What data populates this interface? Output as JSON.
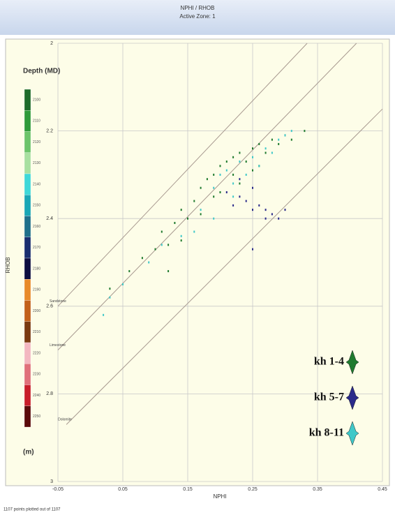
{
  "chart_data": {
    "type": "scatter",
    "title": "NPHI / RHOB",
    "subtitle": "Active Zone: 1",
    "x_label": "NPHI",
    "y_label": "RHOB",
    "footer": "1107 points plotted out of 1107",
    "xlim": [
      -0.05,
      0.45
    ],
    "ylim": [
      3,
      2
    ],
    "xticks": [
      -0.05,
      0.05,
      0.15,
      0.25,
      0.35,
      0.45
    ],
    "yticks": [
      2,
      2.2,
      2.4,
      2.6,
      2.8,
      3
    ],
    "grid": true,
    "lithology_lines": [
      {
        "name": "Sandstone",
        "x": [
          -0.05,
          0.334
        ],
        "y": [
          2.6,
          2.0
        ]
      },
      {
        "name": "Limestone",
        "x": [
          -0.05,
          0.41
        ],
        "y": [
          2.7,
          2.0
        ]
      },
      {
        "name": "Dolomite",
        "x": [
          -0.037,
          0.45
        ],
        "y": [
          2.87,
          2.15
        ]
      }
    ],
    "colorbar": {
      "title": "Depth (MD)",
      "unit": "(m)",
      "labels": [
        "2100",
        "2110",
        "2120",
        "2130",
        "2140",
        "2150",
        "2160",
        "2170",
        "2180",
        "2190",
        "2200",
        "2210",
        "2220",
        "2230",
        "2240",
        "2250"
      ],
      "colors": [
        "#1e6b2a",
        "#2f9a3a",
        "#6cc46a",
        "#a8e0a0",
        "#3fd8d8",
        "#1aa7b5",
        "#20708a",
        "#1a2e6e",
        "#0d0d40",
        "#e88a2a",
        "#c2601a",
        "#7a3a10",
        "#f3b7c0",
        "#e0707a",
        "#c81e2a",
        "#5a0a0a"
      ]
    },
    "series": [
      {
        "name": "kh 1-4",
        "color": "#1f7a2e",
        "x": [
          0.03,
          0.06,
          0.08,
          0.1,
          0.11,
          0.12,
          0.13,
          0.14,
          0.15,
          0.16,
          0.17,
          0.18,
          0.19,
          0.2,
          0.2,
          0.21,
          0.22,
          0.22,
          0.23,
          0.24,
          0.25,
          0.25,
          0.26,
          0.27,
          0.28,
          0.29,
          0.3,
          0.31,
          0.33,
          0.12,
          0.14,
          0.17,
          0.19,
          0.23,
          0.26
        ],
        "values": [
          2.56,
          2.52,
          2.49,
          2.47,
          2.43,
          2.46,
          2.41,
          2.38,
          2.4,
          2.36,
          2.33,
          2.31,
          2.3,
          2.28,
          2.34,
          2.27,
          2.26,
          2.3,
          2.25,
          2.27,
          2.24,
          2.29,
          2.23,
          2.25,
          2.22,
          2.23,
          2.21,
          2.22,
          2.2,
          2.52,
          2.45,
          2.39,
          2.35,
          2.32,
          2.28
        ]
      },
      {
        "name": "kh 5-7",
        "color": "#2a2a8a",
        "x": [
          0.21,
          0.22,
          0.23,
          0.24,
          0.25,
          0.25,
          0.26,
          0.27,
          0.27,
          0.28,
          0.29,
          0.3,
          0.25,
          0.23
        ],
        "values": [
          2.34,
          2.37,
          2.35,
          2.36,
          2.38,
          2.33,
          2.37,
          2.38,
          2.4,
          2.39,
          2.4,
          2.38,
          2.47,
          2.31
        ]
      },
      {
        "name": "kh 8-11",
        "color": "#3fc8c8",
        "x": [
          0.02,
          0.03,
          0.05,
          0.09,
          0.11,
          0.14,
          0.17,
          0.19,
          0.2,
          0.21,
          0.22,
          0.23,
          0.24,
          0.25,
          0.26,
          0.27,
          0.28,
          0.29,
          0.3,
          0.31,
          0.19,
          0.22,
          0.16
        ],
        "values": [
          2.62,
          2.58,
          2.55,
          2.5,
          2.46,
          2.44,
          2.38,
          2.33,
          2.3,
          2.29,
          2.32,
          2.27,
          2.3,
          2.26,
          2.28,
          2.24,
          2.25,
          2.22,
          2.21,
          2.2,
          2.4,
          2.35,
          2.43
        ]
      }
    ]
  }
}
